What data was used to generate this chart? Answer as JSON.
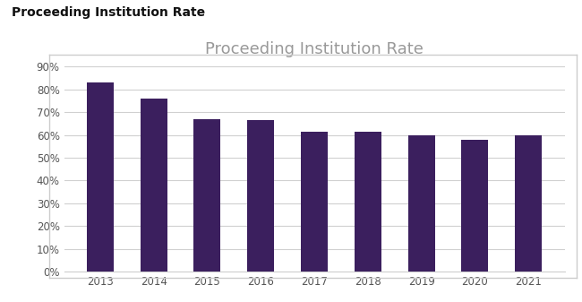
{
  "title_above": "Proceeding Institution Rate",
  "chart_title": "Proceeding Institution Rate",
  "categories": [
    "2013",
    "2014",
    "2015",
    "2016",
    "2017",
    "2018",
    "2019",
    "2020",
    "2021"
  ],
  "values": [
    0.83,
    0.76,
    0.67,
    0.665,
    0.615,
    0.615,
    0.6,
    0.58,
    0.6
  ],
  "bar_color": "#3b1f5e",
  "ylim": [
    0,
    0.9
  ],
  "yticks": [
    0.0,
    0.1,
    0.2,
    0.3,
    0.4,
    0.5,
    0.6,
    0.7,
    0.8,
    0.9
  ],
  "background_color": "#ffffff",
  "chart_bg_color": "#ffffff",
  "chart_title_fontsize": 13,
  "chart_title_color": "#999999",
  "grid_color": "#d0d0d0",
  "tick_label_color": "#555555",
  "above_title_fontsize": 10,
  "above_title_color": "#111111",
  "border_color": "#cccccc",
  "bar_width": 0.5
}
